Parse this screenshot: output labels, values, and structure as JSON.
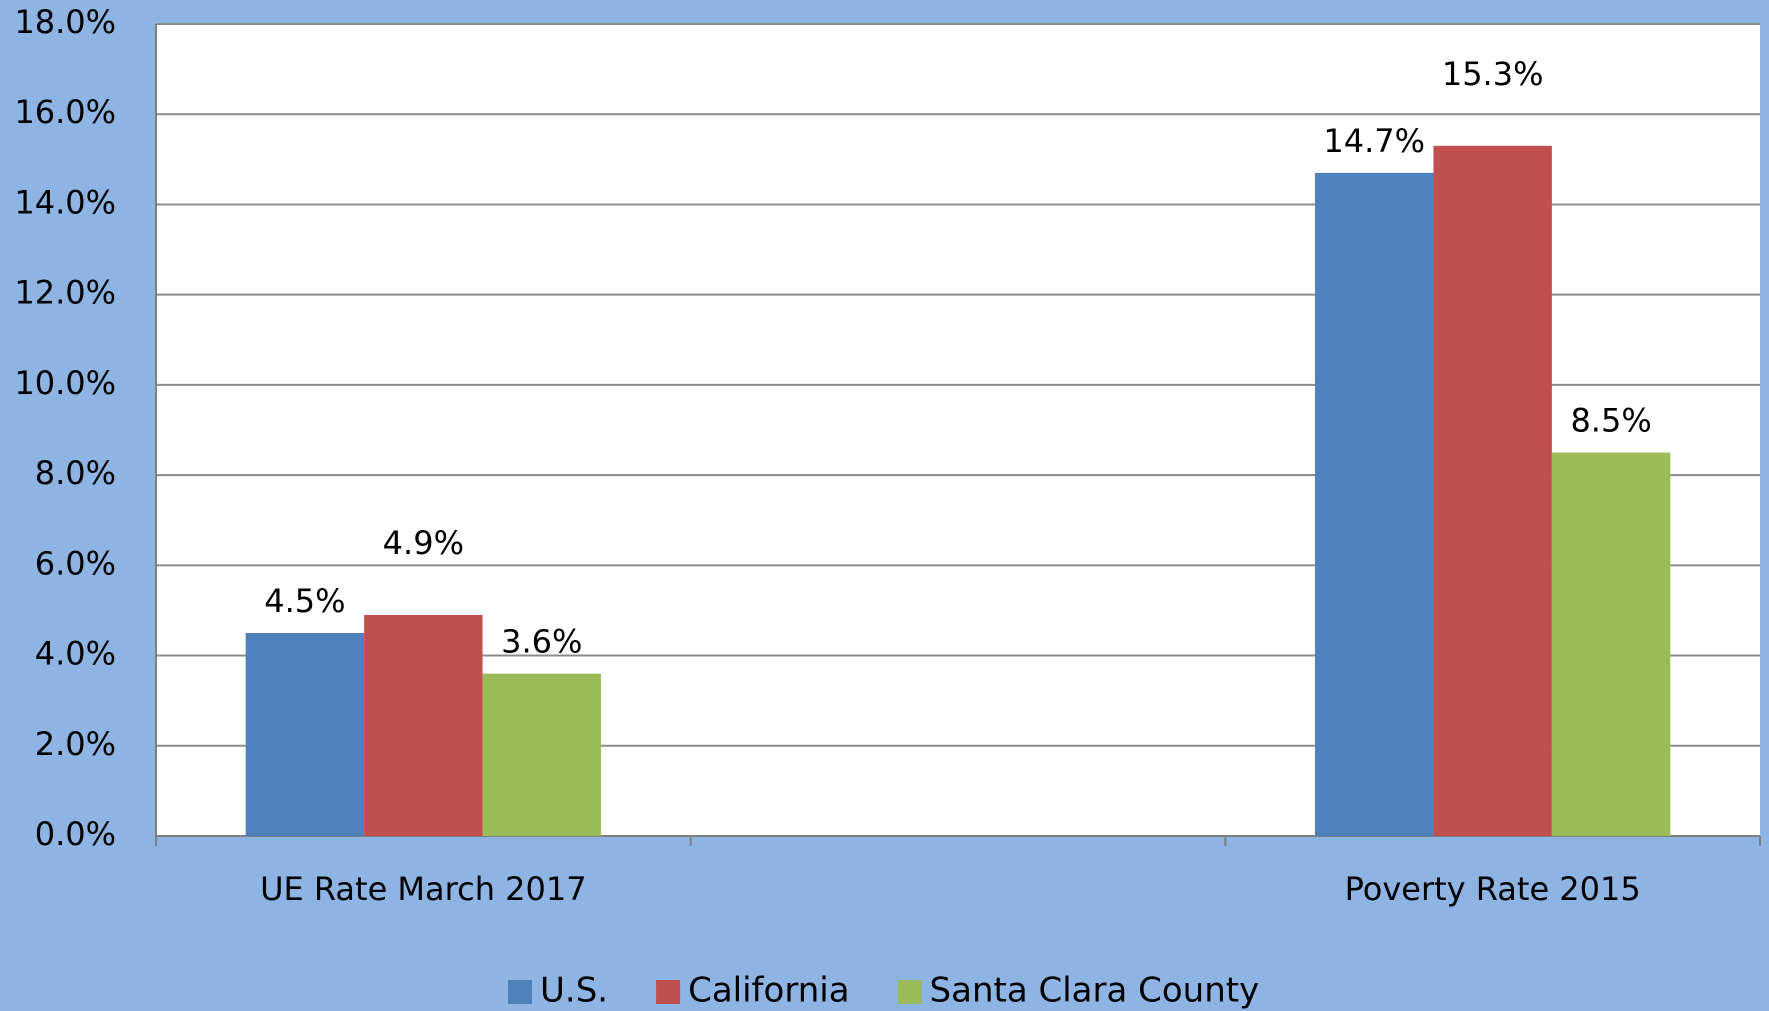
{
  "chart_data": {
    "type": "bar",
    "categories": [
      "UE Rate March 2017",
      null,
      "Poverty Rate 2015"
    ],
    "series": [
      {
        "name": "U.S.",
        "color": "#4f81bd",
        "values": [
          4.5,
          null,
          14.7
        ],
        "value_labels": [
          "4.5%",
          null,
          "14.7%"
        ]
      },
      {
        "name": "California",
        "color": "#c0504d",
        "values": [
          4.9,
          null,
          15.3
        ],
        "value_labels": [
          "4.9%",
          null,
          "15.3%"
        ]
      },
      {
        "name": "Santa Clara County",
        "color": "#9bbb59",
        "values": [
          3.6,
          null,
          8.5
        ],
        "value_labels": [
          "3.6%",
          null,
          "8.5%"
        ]
      }
    ],
    "ylim": [
      0,
      18
    ],
    "yticks": [
      {
        "value": 0,
        "label": "0.0%"
      },
      {
        "value": 2,
        "label": "2.0%"
      },
      {
        "value": 4,
        "label": "4.0%"
      },
      {
        "value": 6,
        "label": "6.0%"
      },
      {
        "value": 8,
        "label": "8.0%"
      },
      {
        "value": 10,
        "label": "10.0%"
      },
      {
        "value": 12,
        "label": "12.0%"
      },
      {
        "value": 14,
        "label": "14.0%"
      },
      {
        "value": 16,
        "label": "16.0%"
      },
      {
        "value": 18,
        "label": "18.0%"
      }
    ],
    "grid": true,
    "legend": "bottom"
  }
}
